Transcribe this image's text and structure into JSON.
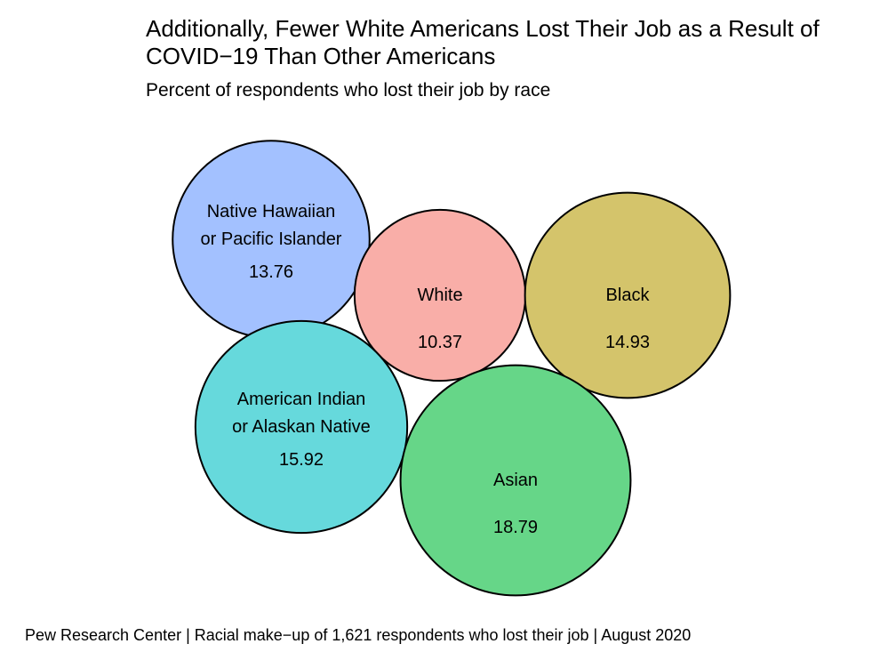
{
  "chart_data": {
    "type": "bubble",
    "title": "Additionally, Fewer White Americans Lost Their Job as a Result of COVID−19 Than Other Americans",
    "subtitle": "Percent of respondents who lost their job by race",
    "caption": "Pew Research Center | Racial make−up of 1,621 respondents who lost their job | August 2020",
    "bubbles": [
      {
        "label_lines": [
          "Native Hawaiian",
          "or Pacific Islander"
        ],
        "value": 13.76,
        "value_label": "13.76",
        "color": "#A3C1FF"
      },
      {
        "label_lines": [
          "White"
        ],
        "value": 10.37,
        "value_label": "10.37",
        "color": "#F9AEA8"
      },
      {
        "label_lines": [
          "Black"
        ],
        "value": 14.93,
        "value_label": "14.93",
        "color": "#D4C46B"
      },
      {
        "label_lines": [
          "American Indian",
          "or Alaskan Native"
        ],
        "value": 15.92,
        "value_label": "15.92",
        "color": "#66D9DC"
      },
      {
        "label_lines": [
          "Asian"
        ],
        "value": 18.79,
        "value_label": "18.79",
        "color": "#66D688"
      }
    ]
  }
}
